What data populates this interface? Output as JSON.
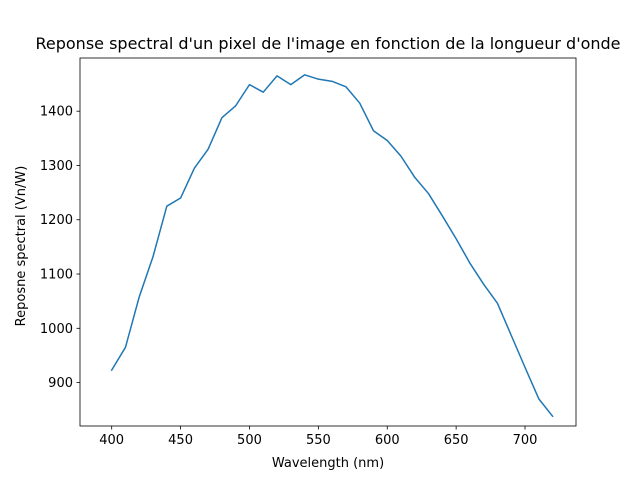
{
  "chart_data": {
    "type": "line",
    "title": "Reponse spectral d'un pixel de l'image en fonction de la longueur d'onde",
    "xlabel": "Wavelength (nm)",
    "ylabel": "Reposne spectral (Vn/W)",
    "xlim": [
      377,
      737
    ],
    "ylim": [
      820,
      1498
    ],
    "xticks": [
      400,
      450,
      500,
      550,
      600,
      650,
      700
    ],
    "yticks": [
      900,
      1000,
      1100,
      1200,
      1300,
      1400
    ],
    "grid": false,
    "line_color": "#1f77b4",
    "series": [
      {
        "x": [
          400,
          410,
          420,
          430,
          440,
          450,
          460,
          470,
          480,
          490,
          500,
          510,
          520,
          530,
          540,
          550,
          560,
          570,
          580,
          590,
          600,
          610,
          620,
          630,
          640,
          650,
          660,
          670,
          680,
          690,
          700,
          710,
          720
        ],
        "y": [
          923,
          965,
          1058,
          1132,
          1225,
          1240,
          1295,
          1330,
          1388,
          1410,
          1449,
          1435,
          1465,
          1449,
          1467,
          1459,
          1455,
          1445,
          1415,
          1364,
          1346,
          1317,
          1278,
          1248,
          1207,
          1165,
          1120,
          1081,
          1046,
          987,
          928,
          870,
          838
        ]
      }
    ]
  }
}
